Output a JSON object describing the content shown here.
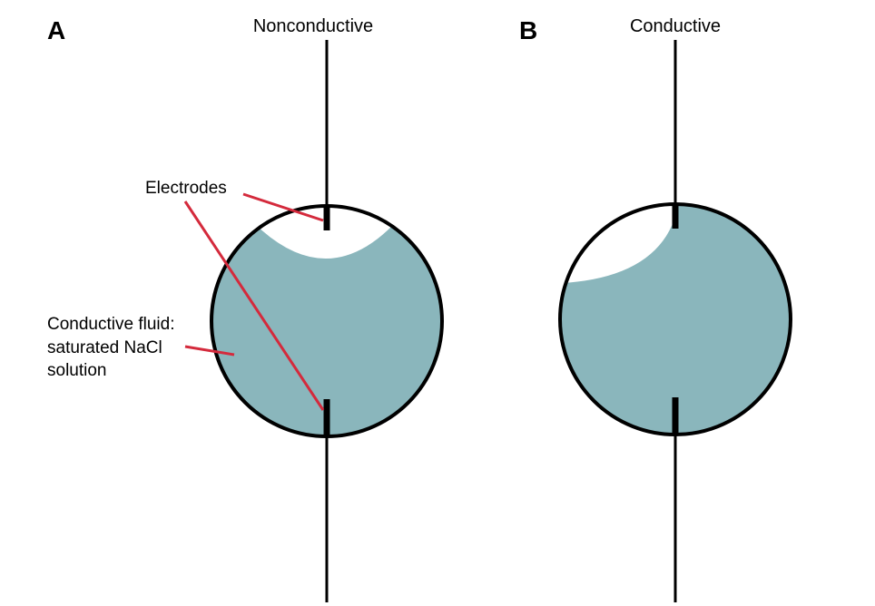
{
  "colors": {
    "fluid": "#8ab6bc",
    "outline": "#000000",
    "pointer": "#d42a3c",
    "background": "#ffffff"
  },
  "panel_a": {
    "letter": "A",
    "title": "Nonconductive"
  },
  "panel_b": {
    "letter": "B",
    "title": "Conductive"
  },
  "labels": {
    "electrodes": "Electrodes",
    "fluid_line1": "Conductive fluid:",
    "fluid_line2": "saturated NaCl",
    "fluid_line3": "solution"
  }
}
